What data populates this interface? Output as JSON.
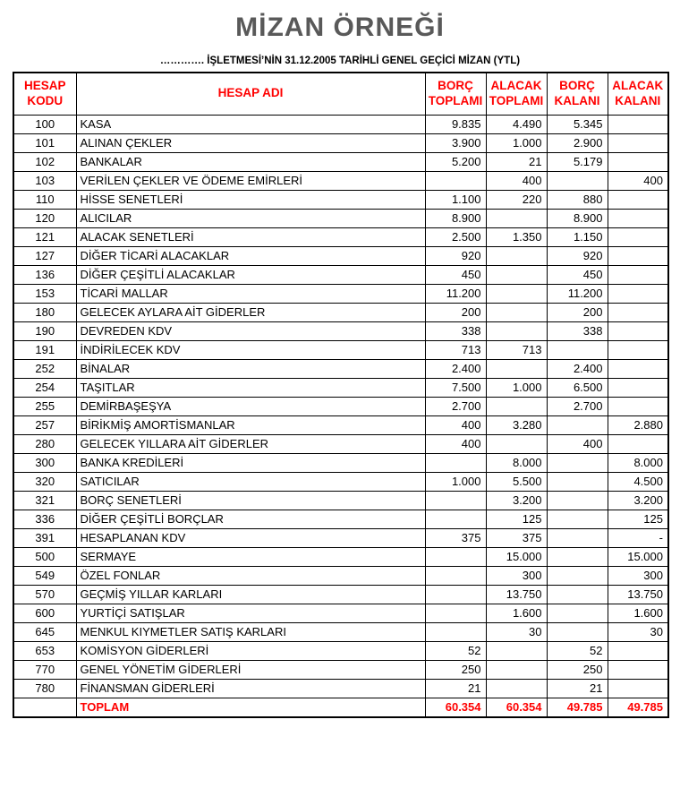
{
  "page": {
    "title": "MİZAN ÖRNEĞİ",
    "subtitle": "…………. İŞLETMESİ’NİN  31.12.2005 TARİHLİ GENEL GEÇİCİ MİZAN (YTL)"
  },
  "colors": {
    "accent_red": "#ff0000",
    "title_gray": "#595959",
    "border_black": "#000000"
  },
  "table": {
    "headers": {
      "code": "HESAP KODU",
      "name": "HESAP ADI",
      "debit_total": "BORÇ TOPLAMI",
      "credit_total": "ALACAK TOPLAMI",
      "debit_balance": "BORÇ KALANI",
      "credit_balance": "ALACAK KALANI"
    },
    "rows": [
      {
        "code": "100",
        "name": "KASA",
        "debit_total": "9.835",
        "credit_total": "4.490",
        "debit_balance": "5.345",
        "credit_balance": ""
      },
      {
        "code": "101",
        "name": "ALINAN ÇEKLER",
        "debit_total": "3.900",
        "credit_total": "1.000",
        "debit_balance": "2.900",
        "credit_balance": ""
      },
      {
        "code": "102",
        "name": "BANKALAR",
        "debit_total": "5.200",
        "credit_total": "21",
        "debit_balance": "5.179",
        "credit_balance": ""
      },
      {
        "code": "103",
        "name": "VERİLEN ÇEKLER VE ÖDEME EMİRLERİ",
        "debit_total": "",
        "credit_total": "400",
        "debit_balance": "",
        "credit_balance": "400"
      },
      {
        "code": "110",
        "name": "HİSSE SENETLERİ",
        "debit_total": "1.100",
        "credit_total": "220",
        "debit_balance": "880",
        "credit_balance": ""
      },
      {
        "code": "120",
        "name": "ALICILAR",
        "debit_total": "8.900",
        "credit_total": "",
        "debit_balance": "8.900",
        "credit_balance": ""
      },
      {
        "code": "121",
        "name": "ALACAK SENETLERİ",
        "debit_total": "2.500",
        "credit_total": "1.350",
        "debit_balance": "1.150",
        "credit_balance": ""
      },
      {
        "code": "127",
        "name": "DİĞER TİCARİ ALACAKLAR",
        "debit_total": "920",
        "credit_total": "",
        "debit_balance": "920",
        "credit_balance": ""
      },
      {
        "code": "136",
        "name": "DİĞER ÇEŞİTLİ ALACAKLAR",
        "debit_total": "450",
        "credit_total": "",
        "debit_balance": "450",
        "credit_balance": ""
      },
      {
        "code": "153",
        "name": "TİCARİ MALLAR",
        "debit_total": "11.200",
        "credit_total": "",
        "debit_balance": "11.200",
        "credit_balance": ""
      },
      {
        "code": "180",
        "name": "GELECEK AYLARA AİT GİDERLER",
        "debit_total": "200",
        "credit_total": "",
        "debit_balance": "200",
        "credit_balance": ""
      },
      {
        "code": "190",
        "name": "DEVREDEN KDV",
        "debit_total": "338",
        "credit_total": "",
        "debit_balance": "338",
        "credit_balance": ""
      },
      {
        "code": "191",
        "name": "İNDİRİLECEK KDV",
        "debit_total": "713",
        "credit_total": "713",
        "debit_balance": "",
        "credit_balance": ""
      },
      {
        "code": "252",
        "name": "BİNALAR",
        "debit_total": "2.400",
        "credit_total": "",
        "debit_balance": "2.400",
        "credit_balance": ""
      },
      {
        "code": "254",
        "name": "TAŞITLAR",
        "debit_total": "7.500",
        "credit_total": "1.000",
        "debit_balance": "6.500",
        "credit_balance": ""
      },
      {
        "code": "255",
        "name": "DEMİRBAŞEŞYA",
        "debit_total": "2.700",
        "credit_total": "",
        "debit_balance": "2.700",
        "credit_balance": ""
      },
      {
        "code": "257",
        "name": "BİRİKMİŞ AMORTİSMANLAR",
        "debit_total": "400",
        "credit_total": "3.280",
        "debit_balance": "",
        "credit_balance": "2.880"
      },
      {
        "code": "280",
        "name": "GELECEK YILLARA AİT GİDERLER",
        "debit_total": "400",
        "credit_total": "",
        "debit_balance": "400",
        "credit_balance": ""
      },
      {
        "code": "300",
        "name": "BANKA KREDİLERİ",
        "debit_total": "",
        "credit_total": "8.000",
        "debit_balance": "",
        "credit_balance": "8.000"
      },
      {
        "code": "320",
        "name": "SATICILAR",
        "debit_total": "1.000",
        "credit_total": "5.500",
        "debit_balance": "",
        "credit_balance": "4.500"
      },
      {
        "code": "321",
        "name": "BORÇ SENETLERİ",
        "debit_total": "",
        "credit_total": "3.200",
        "debit_balance": "",
        "credit_balance": "3.200"
      },
      {
        "code": "336",
        "name": "DİĞER ÇEŞİTLİ BORÇLAR",
        "debit_total": "",
        "credit_total": "125",
        "debit_balance": "",
        "credit_balance": "125"
      },
      {
        "code": "391",
        "name": "HESAPLANAN KDV",
        "debit_total": "375",
        "credit_total": "375",
        "debit_balance": "",
        "credit_balance": "-"
      },
      {
        "code": "500",
        "name": "SERMAYE",
        "debit_total": "",
        "credit_total": "15.000",
        "debit_balance": "",
        "credit_balance": "15.000"
      },
      {
        "code": "549",
        "name": "ÖZEL FONLAR",
        "debit_total": "",
        "credit_total": "300",
        "debit_balance": "",
        "credit_balance": "300"
      },
      {
        "code": "570",
        "name": "GEÇMİŞ YILLAR KARLARI",
        "debit_total": "",
        "credit_total": "13.750",
        "debit_balance": "",
        "credit_balance": "13.750"
      },
      {
        "code": "600",
        "name": "YURTİÇİ SATIŞLAR",
        "debit_total": "",
        "credit_total": "1.600",
        "debit_balance": "",
        "credit_balance": "1.600"
      },
      {
        "code": "645",
        "name": "MENKUL KIYMETLER SATIŞ KARLARI",
        "debit_total": "",
        "credit_total": "30",
        "debit_balance": "",
        "credit_balance": "30"
      },
      {
        "code": "653",
        "name": "KOMİSYON GİDERLERİ",
        "debit_total": "52",
        "credit_total": "",
        "debit_balance": "52",
        "credit_balance": ""
      },
      {
        "code": "770",
        "name": "GENEL YÖNETİM GİDERLERİ",
        "debit_total": "250",
        "credit_total": "",
        "debit_balance": "250",
        "credit_balance": ""
      },
      {
        "code": "780",
        "name": "FİNANSMAN GİDERLERİ",
        "debit_total": "21",
        "credit_total": "",
        "debit_balance": "21",
        "credit_balance": ""
      }
    ],
    "total": {
      "code": "",
      "label": "TOPLAM",
      "debit_total": "60.354",
      "credit_total": "60.354",
      "debit_balance": "49.785",
      "credit_balance": "49.785"
    }
  }
}
